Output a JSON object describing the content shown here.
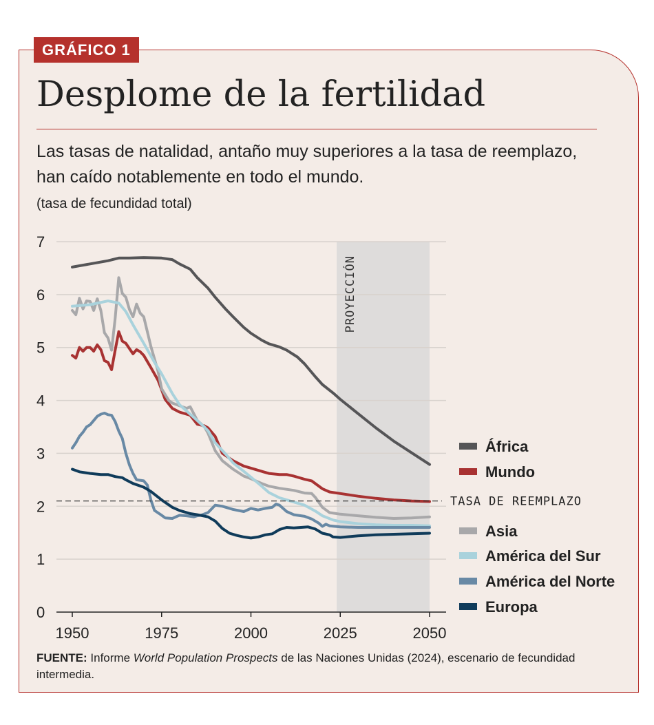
{
  "tag": "GRÁFICO 1",
  "title": "Desplome de la fertilidad",
  "subtitle": "Las tasas de natalidad, antaño muy superiores a la tasa de reemplazo, han caído notablemente en todo el mundo.",
  "unit_label": "(tasa de fecundidad total)",
  "source": {
    "label": "FUENTE:",
    "text_pre": " Informe ",
    "italic": "World Population Prospects",
    "text_post": " de las Naciones Unidas (2024), escenario de fecundidad intermedia."
  },
  "colors": {
    "accent": "#b5312c",
    "background": "#f4ece7",
    "projection_band": "#dedcdb"
  },
  "chart_data": {
    "type": "line",
    "title": "Desplome de la fertilidad",
    "ylabel": "(tasa de fecundidad total)",
    "xlim": [
      1950,
      2050
    ],
    "ylim": [
      0,
      7
    ],
    "x_ticks": [
      1950,
      1975,
      2000,
      2025,
      2050
    ],
    "y_ticks": [
      0,
      1,
      2,
      3,
      4,
      5,
      6,
      7
    ],
    "projection": {
      "label": "PROYECCIÓN",
      "from": 2024,
      "to": 2050
    },
    "reference_line": {
      "label": "TASA DE REEMPLAZO",
      "value": 2.1
    },
    "series": [
      {
        "name": "África",
        "color": "#555557",
        "points": [
          [
            1950,
            6.52
          ],
          [
            1955,
            6.58
          ],
          [
            1960,
            6.64
          ],
          [
            1963,
            6.69
          ],
          [
            1966,
            6.69
          ],
          [
            1970,
            6.7
          ],
          [
            1975,
            6.69
          ],
          [
            1978,
            6.66
          ],
          [
            1980,
            6.58
          ],
          [
            1983,
            6.48
          ],
          [
            1985,
            6.32
          ],
          [
            1988,
            6.12
          ],
          [
            1990,
            5.95
          ],
          [
            1993,
            5.72
          ],
          [
            1995,
            5.58
          ],
          [
            1998,
            5.38
          ],
          [
            2000,
            5.27
          ],
          [
            2003,
            5.14
          ],
          [
            2005,
            5.07
          ],
          [
            2008,
            5.01
          ],
          [
            2010,
            4.95
          ],
          [
            2013,
            4.82
          ],
          [
            2015,
            4.69
          ],
          [
            2018,
            4.45
          ],
          [
            2020,
            4.3
          ],
          [
            2023,
            4.14
          ],
          [
            2025,
            4.02
          ],
          [
            2030,
            3.75
          ],
          [
            2035,
            3.48
          ],
          [
            2040,
            3.23
          ],
          [
            2045,
            3.01
          ],
          [
            2050,
            2.79
          ]
        ]
      },
      {
        "name": "Mundo",
        "color": "#a83232",
        "points": [
          [
            1950,
            4.85
          ],
          [
            1951,
            4.8
          ],
          [
            1952,
            5.0
          ],
          [
            1953,
            4.93
          ],
          [
            1954,
            5.0
          ],
          [
            1955,
            5.0
          ],
          [
            1956,
            4.93
          ],
          [
            1957,
            5.05
          ],
          [
            1958,
            4.96
          ],
          [
            1959,
            4.75
          ],
          [
            1960,
            4.72
          ],
          [
            1961,
            4.58
          ],
          [
            1962,
            4.95
          ],
          [
            1963,
            5.3
          ],
          [
            1964,
            5.12
          ],
          [
            1965,
            5.08
          ],
          [
            1966,
            4.98
          ],
          [
            1967,
            4.88
          ],
          [
            1968,
            4.96
          ],
          [
            1969,
            4.92
          ],
          [
            1970,
            4.85
          ],
          [
            1972,
            4.62
          ],
          [
            1974,
            4.38
          ],
          [
            1975,
            4.2
          ],
          [
            1976,
            4.02
          ],
          [
            1978,
            3.85
          ],
          [
            1980,
            3.78
          ],
          [
            1983,
            3.72
          ],
          [
            1985,
            3.55
          ],
          [
            1987,
            3.52
          ],
          [
            1988,
            3.48
          ],
          [
            1990,
            3.32
          ],
          [
            1992,
            3.0
          ],
          [
            1995,
            2.86
          ],
          [
            1998,
            2.76
          ],
          [
            2000,
            2.72
          ],
          [
            2003,
            2.66
          ],
          [
            2005,
            2.62
          ],
          [
            2008,
            2.6
          ],
          [
            2010,
            2.6
          ],
          [
            2012,
            2.57
          ],
          [
            2015,
            2.51
          ],
          [
            2017,
            2.48
          ],
          [
            2018,
            2.43
          ],
          [
            2020,
            2.33
          ],
          [
            2022,
            2.27
          ],
          [
            2025,
            2.24
          ],
          [
            2030,
            2.19
          ],
          [
            2035,
            2.15
          ],
          [
            2040,
            2.12
          ],
          [
            2045,
            2.1
          ],
          [
            2050,
            2.09
          ]
        ]
      },
      {
        "name": "Asia",
        "color": "#a8a8aa",
        "points": [
          [
            1950,
            5.7
          ],
          [
            1951,
            5.62
          ],
          [
            1952,
            5.93
          ],
          [
            1953,
            5.73
          ],
          [
            1954,
            5.88
          ],
          [
            1955,
            5.87
          ],
          [
            1956,
            5.7
          ],
          [
            1957,
            5.92
          ],
          [
            1958,
            5.7
          ],
          [
            1959,
            5.28
          ],
          [
            1960,
            5.18
          ],
          [
            1961,
            4.95
          ],
          [
            1962,
            5.55
          ],
          [
            1963,
            6.32
          ],
          [
            1964,
            6.02
          ],
          [
            1965,
            5.95
          ],
          [
            1966,
            5.72
          ],
          [
            1967,
            5.58
          ],
          [
            1968,
            5.82
          ],
          [
            1969,
            5.65
          ],
          [
            1970,
            5.58
          ],
          [
            1972,
            5.02
          ],
          [
            1974,
            4.55
          ],
          [
            1975,
            4.22
          ],
          [
            1977,
            4.0
          ],
          [
            1978,
            3.95
          ],
          [
            1980,
            3.9
          ],
          [
            1982,
            3.85
          ],
          [
            1983,
            3.88
          ],
          [
            1985,
            3.62
          ],
          [
            1987,
            3.5
          ],
          [
            1988,
            3.38
          ],
          [
            1990,
            3.05
          ],
          [
            1992,
            2.86
          ],
          [
            1995,
            2.7
          ],
          [
            1998,
            2.57
          ],
          [
            2000,
            2.52
          ],
          [
            2003,
            2.43
          ],
          [
            2005,
            2.38
          ],
          [
            2008,
            2.34
          ],
          [
            2010,
            2.32
          ],
          [
            2012,
            2.3
          ],
          [
            2015,
            2.25
          ],
          [
            2017,
            2.24
          ],
          [
            2018,
            2.17
          ],
          [
            2020,
            1.98
          ],
          [
            2022,
            1.88
          ],
          [
            2025,
            1.85
          ],
          [
            2030,
            1.82
          ],
          [
            2035,
            1.79
          ],
          [
            2040,
            1.77
          ],
          [
            2045,
            1.78
          ],
          [
            2050,
            1.8
          ]
        ]
      },
      {
        "name": "América del Sur",
        "color": "#a9d2dc",
        "points": [
          [
            1950,
            5.78
          ],
          [
            1955,
            5.81
          ],
          [
            1960,
            5.88
          ],
          [
            1963,
            5.84
          ],
          [
            1965,
            5.68
          ],
          [
            1967,
            5.43
          ],
          [
            1970,
            5.08
          ],
          [
            1973,
            4.72
          ],
          [
            1975,
            4.5
          ],
          [
            1978,
            4.13
          ],
          [
            1980,
            3.92
          ],
          [
            1983,
            3.74
          ],
          [
            1985,
            3.62
          ],
          [
            1988,
            3.43
          ],
          [
            1990,
            3.2
          ],
          [
            1993,
            2.98
          ],
          [
            1995,
            2.82
          ],
          [
            1998,
            2.66
          ],
          [
            2000,
            2.55
          ],
          [
            2003,
            2.38
          ],
          [
            2005,
            2.26
          ],
          [
            2008,
            2.16
          ],
          [
            2010,
            2.12
          ],
          [
            2013,
            2.06
          ],
          [
            2015,
            2.02
          ],
          [
            2018,
            1.91
          ],
          [
            2020,
            1.82
          ],
          [
            2023,
            1.74
          ],
          [
            2025,
            1.71
          ],
          [
            2030,
            1.67
          ],
          [
            2035,
            1.65
          ],
          [
            2040,
            1.64
          ],
          [
            2045,
            1.64
          ],
          [
            2050,
            1.63
          ]
        ]
      },
      {
        "name": "América del Norte",
        "color": "#6889a5",
        "points": [
          [
            1950,
            3.1
          ],
          [
            1951,
            3.2
          ],
          [
            1952,
            3.32
          ],
          [
            1953,
            3.4
          ],
          [
            1954,
            3.5
          ],
          [
            1955,
            3.54
          ],
          [
            1956,
            3.62
          ],
          [
            1957,
            3.7
          ],
          [
            1958,
            3.74
          ],
          [
            1959,
            3.76
          ],
          [
            1960,
            3.73
          ],
          [
            1961,
            3.72
          ],
          [
            1962,
            3.6
          ],
          [
            1963,
            3.42
          ],
          [
            1964,
            3.28
          ],
          [
            1965,
            3.0
          ],
          [
            1966,
            2.78
          ],
          [
            1967,
            2.62
          ],
          [
            1968,
            2.5
          ],
          [
            1970,
            2.48
          ],
          [
            1971,
            2.4
          ],
          [
            1972,
            2.12
          ],
          [
            1973,
            1.92
          ],
          [
            1975,
            1.83
          ],
          [
            1976,
            1.78
          ],
          [
            1978,
            1.77
          ],
          [
            1980,
            1.83
          ],
          [
            1982,
            1.82
          ],
          [
            1984,
            1.8
          ],
          [
            1985,
            1.82
          ],
          [
            1986,
            1.83
          ],
          [
            1988,
            1.88
          ],
          [
            1990,
            2.02
          ],
          [
            1992,
            2.0
          ],
          [
            1995,
            1.94
          ],
          [
            1998,
            1.9
          ],
          [
            2000,
            1.96
          ],
          [
            2002,
            1.93
          ],
          [
            2004,
            1.96
          ],
          [
            2006,
            1.98
          ],
          [
            2007,
            2.04
          ],
          [
            2008,
            2.02
          ],
          [
            2010,
            1.9
          ],
          [
            2012,
            1.84
          ],
          [
            2014,
            1.82
          ],
          [
            2015,
            1.81
          ],
          [
            2017,
            1.76
          ],
          [
            2018,
            1.72
          ],
          [
            2019,
            1.68
          ],
          [
            2020,
            1.62
          ],
          [
            2021,
            1.66
          ],
          [
            2022,
            1.63
          ],
          [
            2025,
            1.61
          ],
          [
            2030,
            1.6
          ],
          [
            2035,
            1.6
          ],
          [
            2040,
            1.6
          ],
          [
            2045,
            1.6
          ],
          [
            2050,
            1.6
          ]
        ]
      },
      {
        "name": "Europa",
        "color": "#0f3b5a",
        "points": [
          [
            1950,
            2.7
          ],
          [
            1952,
            2.65
          ],
          [
            1955,
            2.62
          ],
          [
            1958,
            2.6
          ],
          [
            1960,
            2.6
          ],
          [
            1962,
            2.56
          ],
          [
            1964,
            2.54
          ],
          [
            1965,
            2.5
          ],
          [
            1967,
            2.43
          ],
          [
            1970,
            2.36
          ],
          [
            1972,
            2.28
          ],
          [
            1975,
            2.12
          ],
          [
            1978,
            1.98
          ],
          [
            1980,
            1.92
          ],
          [
            1983,
            1.86
          ],
          [
            1985,
            1.84
          ],
          [
            1988,
            1.8
          ],
          [
            1990,
            1.72
          ],
          [
            1992,
            1.58
          ],
          [
            1994,
            1.49
          ],
          [
            1996,
            1.45
          ],
          [
            1998,
            1.42
          ],
          [
            2000,
            1.4
          ],
          [
            2002,
            1.42
          ],
          [
            2004,
            1.46
          ],
          [
            2006,
            1.48
          ],
          [
            2008,
            1.56
          ],
          [
            2010,
            1.6
          ],
          [
            2012,
            1.59
          ],
          [
            2014,
            1.6
          ],
          [
            2016,
            1.61
          ],
          [
            2018,
            1.57
          ],
          [
            2020,
            1.49
          ],
          [
            2022,
            1.46
          ],
          [
            2023,
            1.42
          ],
          [
            2025,
            1.41
          ],
          [
            2030,
            1.44
          ],
          [
            2035,
            1.46
          ],
          [
            2040,
            1.47
          ],
          [
            2045,
            1.48
          ],
          [
            2050,
            1.49
          ]
        ]
      }
    ]
  }
}
